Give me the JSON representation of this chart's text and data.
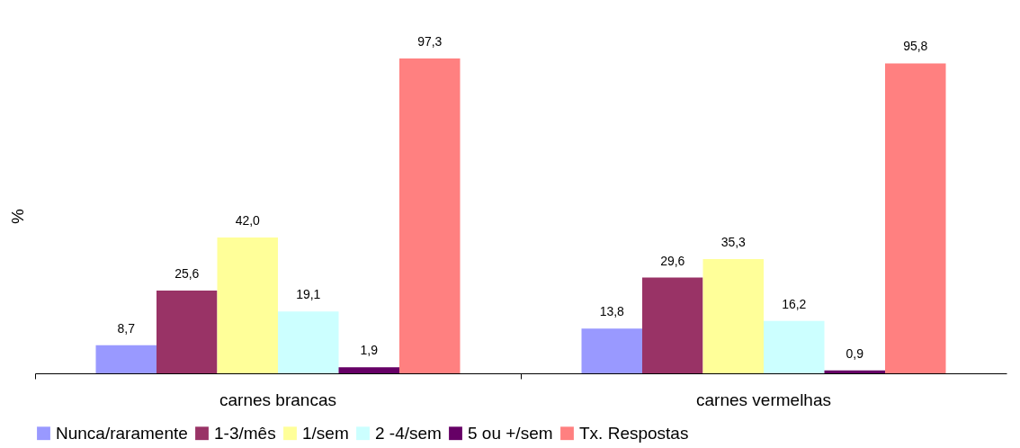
{
  "chart_data": {
    "type": "bar",
    "ylabel": "%",
    "categories": [
      "carnes brancas",
      "carnes vermelhas"
    ],
    "series": [
      {
        "name": "Nunca/raramente",
        "color": "#9999ff",
        "values": [
          8.7,
          13.8
        ],
        "value_labels": [
          "8,7",
          "13,8"
        ]
      },
      {
        "name": "1-3/mês",
        "color": "#993366",
        "values": [
          25.6,
          29.6
        ],
        "value_labels": [
          "25,6",
          "29,6"
        ]
      },
      {
        "name": "1/sem",
        "color": "#ffff99",
        "values": [
          42.0,
          35.3
        ],
        "value_labels": [
          "42,0",
          "35,3"
        ]
      },
      {
        "name": "2 -4/sem",
        "color": "#ccffff",
        "values": [
          19.1,
          16.2
        ],
        "value_labels": [
          "19,1",
          "16,2"
        ]
      },
      {
        "name": "5 ou +/sem",
        "color": "#660066",
        "values": [
          1.9,
          0.9
        ],
        "value_labels": [
          "1,9",
          "0,9"
        ]
      },
      {
        "name": "Tx. Respostas",
        "color": "#ff8080",
        "values": [
          97.3,
          95.8
        ],
        "value_labels": [
          "97,3",
          "95,8"
        ]
      }
    ],
    "grid": false,
    "legend": "bottom"
  }
}
